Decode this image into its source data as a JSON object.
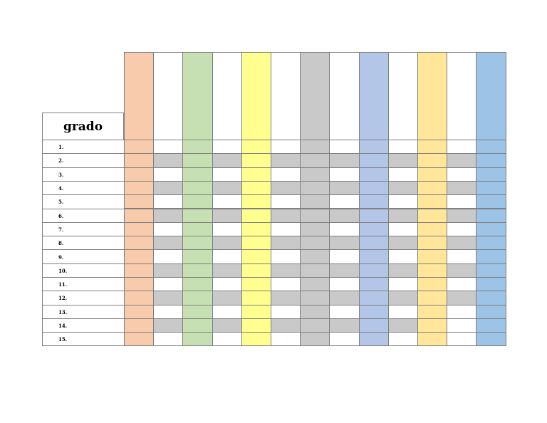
{
  "sheet": {
    "title": "grado",
    "row_labels": [
      "1.",
      "2.",
      "3.",
      "4.",
      "5.",
      "6.",
      "7.",
      "8.",
      "9.",
      "10.",
      "11.",
      "12.",
      "13.",
      "14.",
      "15."
    ],
    "columns": [
      {
        "color": "#f8cbad",
        "striped": false
      },
      {
        "color": "#ffffff",
        "striped": true
      },
      {
        "color": "#c6e0b4",
        "striped": false
      },
      {
        "color": "#ffffff",
        "striped": true
      },
      {
        "color": "#ffff8f",
        "striped": false
      },
      {
        "color": "#ffffff",
        "striped": true
      },
      {
        "color": "#c9c9c9",
        "striped": false
      },
      {
        "color": "#ffffff",
        "striped": true
      },
      {
        "color": "#b4c6e7",
        "striped": false
      },
      {
        "color": "#ffffff",
        "striped": true
      },
      {
        "color": "#ffe699",
        "striped": false
      },
      {
        "color": "#ffffff",
        "striped": true
      },
      {
        "color": "#9dc3e6",
        "striped": false
      }
    ],
    "stripe_color": "#c9c9c9",
    "border_color": "#7f7f7f"
  }
}
